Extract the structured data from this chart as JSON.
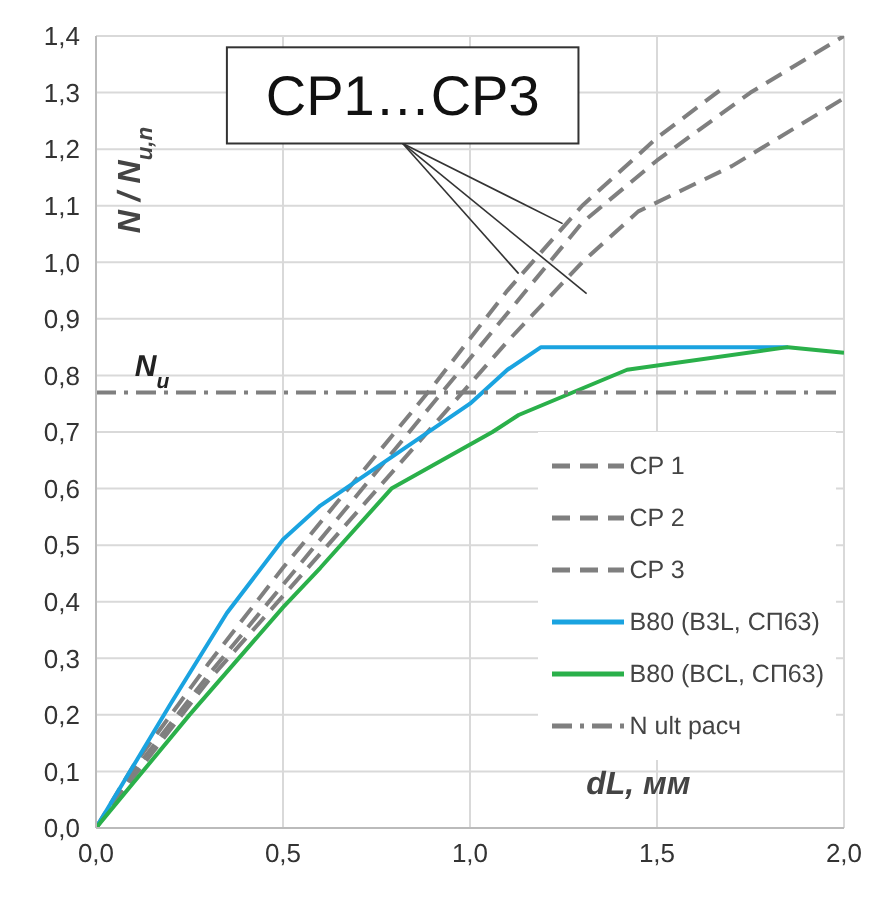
{
  "chart_data": {
    "type": "line",
    "ylabel": "N / N$_{u,n}$",
    "xlabel": "dL, мм",
    "annotations": [
      {
        "text": "CP1…CP3",
        "x": 1.13,
        "y": 0.98
      },
      {
        "text": "N$_{u}$",
        "x": 0.15,
        "y": 0.77
      }
    ],
    "xlim": [
      0,
      2
    ],
    "ylim": [
      0,
      1.4
    ],
    "xticks": [
      {
        "value": 0,
        "label": "0,0"
      },
      {
        "value": 0.5,
        "label": "0,5"
      },
      {
        "value": 1,
        "label": "1,0"
      },
      {
        "value": 1.5,
        "label": "1,5"
      },
      {
        "value": 2,
        "label": "2,0"
      }
    ],
    "yticks": [
      {
        "value": 0,
        "label": "0,0"
      },
      {
        "value": 0.1,
        "label": "0,1"
      },
      {
        "value": 0.2,
        "label": "0,2"
      },
      {
        "value": 0.3,
        "label": "0,3"
      },
      {
        "value": 0.4,
        "label": "0,4"
      },
      {
        "value": 0.5,
        "label": "0,5"
      },
      {
        "value": 0.6,
        "label": "0,6"
      },
      {
        "value": 0.7,
        "label": "0,7"
      },
      {
        "value": 0.8,
        "label": "0,8"
      },
      {
        "value": 0.9,
        "label": "0,9"
      },
      {
        "value": 1,
        "label": "1,0"
      },
      {
        "value": 1.1,
        "label": "1,1"
      },
      {
        "value": 1.2,
        "label": "1,2"
      },
      {
        "value": 1.3,
        "label": "1,3"
      },
      {
        "value": 1.4,
        "label": "1,4"
      }
    ],
    "grid": true,
    "legend": "bottom right",
    "marker": "none",
    "series": [
      {
        "name": "CP 1",
        "color": "#7f7f7f",
        "line_style": "dashed",
        "x": [
          0,
          0.1,
          0.3,
          0.5,
          0.7,
          0.9,
          1.1,
          1.3,
          1.5,
          1.68
        ],
        "values": [
          0,
          0.11,
          0.29,
          0.46,
          0.62,
          0.78,
          0.95,
          1.1,
          1.22,
          1.31
        ]
      },
      {
        "name": "CP 2",
        "color": "#7f7f7f",
        "line_style": "dashed",
        "x": [
          0,
          0.1,
          0.3,
          0.5,
          0.7,
          0.9,
          1.1,
          1.3,
          1.5,
          1.75,
          2.0
        ],
        "values": [
          0,
          0.1,
          0.27,
          0.43,
          0.59,
          0.75,
          0.91,
          1.07,
          1.18,
          1.3,
          1.4
        ]
      },
      {
        "name": "CP 3",
        "color": "#7f7f7f",
        "line_style": "dashed",
        "x": [
          0,
          0.1,
          0.3,
          0.5,
          0.7,
          0.9,
          1.1,
          1.3,
          1.45,
          1.7,
          2.0
        ],
        "values": [
          0,
          0.09,
          0.26,
          0.41,
          0.56,
          0.71,
          0.86,
          1.0,
          1.09,
          1.17,
          1.29
        ]
      },
      {
        "name": "B80 (B3L, СП63)",
        "color": "#1aa3e0",
        "line_style": "solid",
        "x": [
          0,
          0.2,
          0.35,
          0.5,
          0.6,
          0.8,
          1.0,
          1.1,
          1.19,
          1.85
        ],
        "values": [
          0,
          0.22,
          0.38,
          0.51,
          0.57,
          0.66,
          0.75,
          0.81,
          0.85,
          0.85
        ]
      },
      {
        "name": "B80 (BCL, СП63)",
        "color": "#2ab04a",
        "line_style": "solid",
        "x": [
          0,
          0.25,
          0.5,
          0.6,
          0.79,
          1.06,
          1.13,
          1.42,
          1.85,
          2.0
        ],
        "values": [
          0,
          0.2,
          0.39,
          0.46,
          0.6,
          0.7,
          0.73,
          0.81,
          0.85,
          0.84
        ]
      },
      {
        "name": "N ult расч",
        "color": "#7f7f7f",
        "line_style": "dashdot",
        "x": [
          0,
          2
        ],
        "values": [
          0.77,
          0.77
        ]
      }
    ]
  }
}
